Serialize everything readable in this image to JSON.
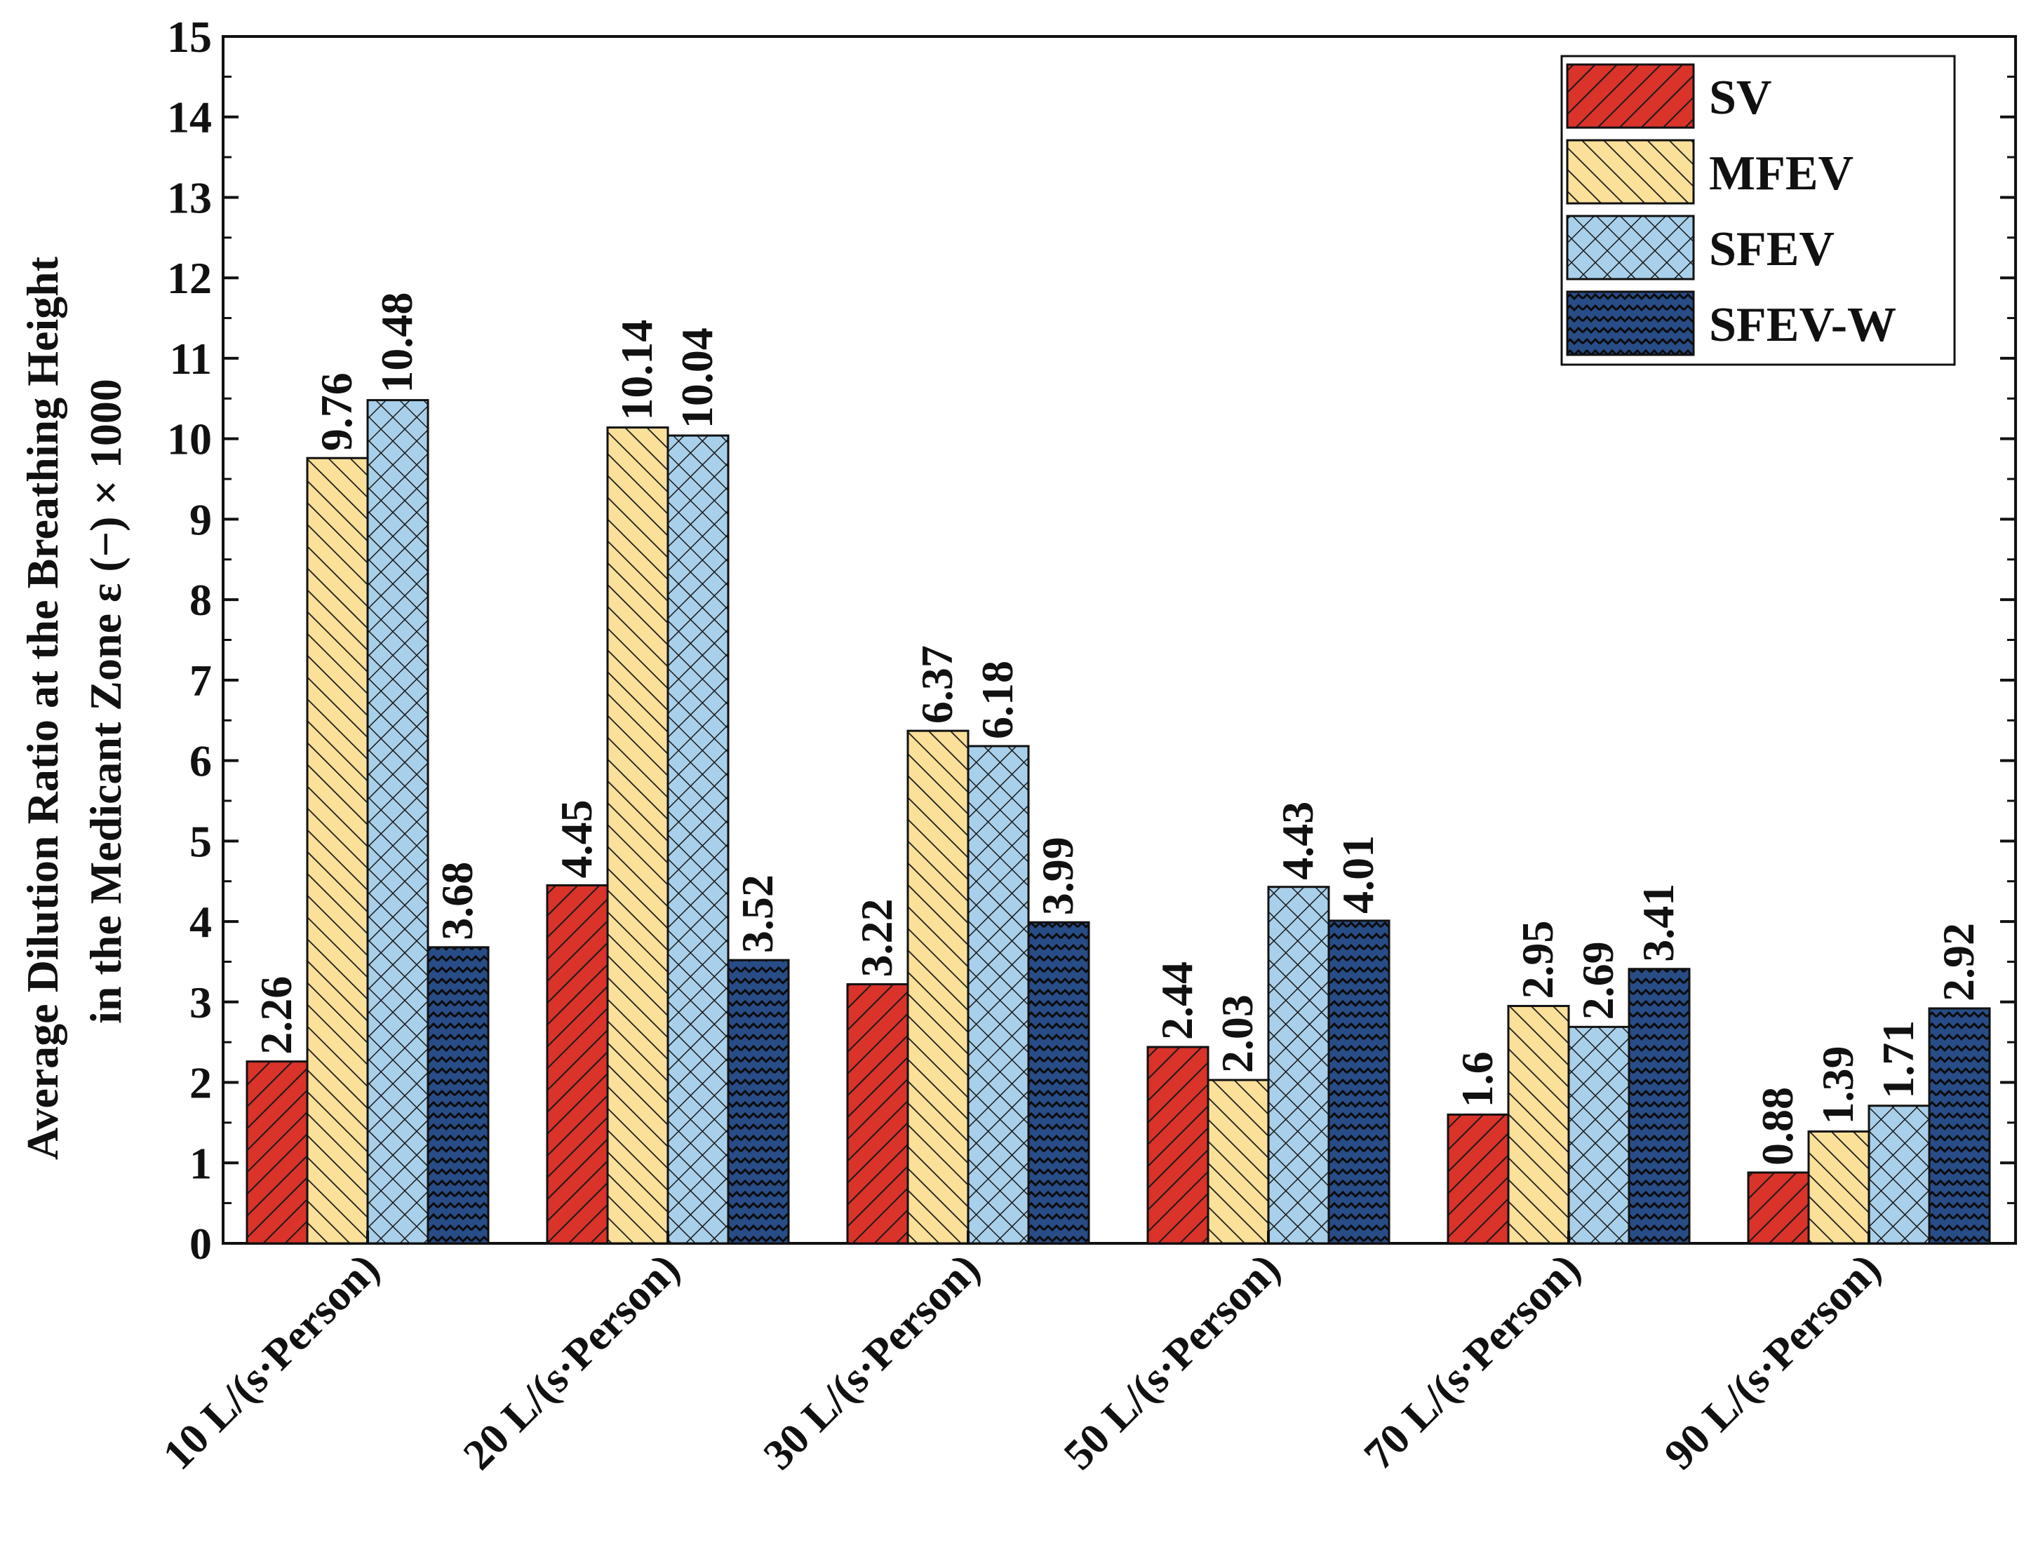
{
  "colors": {
    "SV": "#d9332a",
    "MFEV": "#fbe09a",
    "SFEV": "#a9d0ea",
    "SFEV-W": "#284c86"
  },
  "chart_data": {
    "type": "bar",
    "title": "",
    "xlabel": "",
    "ylabel_line1": "Average Dilution Ratio at the Breathing Height",
    "ylabel_line2": "in the Medicant Zone   ε (−) × 1000",
    "ylim": [
      0,
      15
    ],
    "yticks": [
      "0",
      "1",
      "2",
      "3",
      "4",
      "5",
      "6",
      "7",
      "8",
      "9",
      "10",
      "11",
      "12",
      "13",
      "14",
      "15"
    ],
    "categories": [
      "10 L/(s·Person)",
      "20 L/(s·Person)",
      "30 L/(s·Person)",
      "50 L/(s·Person)",
      "70 L/(s·Person)",
      "90 L/(s·Person)"
    ],
    "series": [
      {
        "name": "SV",
        "values": [
          2.26,
          4.45,
          3.22,
          2.44,
          1.6,
          0.88
        ],
        "labels": [
          "2.26",
          "4.45",
          "3.22",
          "2.44",
          "1.6",
          "0.88"
        ]
      },
      {
        "name": "MFEV",
        "values": [
          9.76,
          10.14,
          6.37,
          2.03,
          2.95,
          1.39
        ],
        "labels": [
          "9.76",
          "10.14",
          "6.37",
          "2.03",
          "2.95",
          "1.39"
        ]
      },
      {
        "name": "SFEV",
        "values": [
          10.48,
          10.04,
          6.18,
          4.43,
          2.69,
          1.71
        ],
        "labels": [
          "10.48",
          "10.04",
          "6.18",
          "4.43",
          "2.69",
          "1.71"
        ]
      },
      {
        "name": "SFEV-W",
        "values": [
          3.68,
          3.52,
          3.99,
          4.01,
          3.41,
          2.92
        ],
        "labels": [
          "3.68",
          "3.52",
          "3.99",
          "4.01",
          "3.41",
          "2.92"
        ]
      }
    ],
    "legend": [
      "SV",
      "MFEV",
      "SFEV",
      "SFEV-W"
    ],
    "legend_position": "top-right"
  }
}
